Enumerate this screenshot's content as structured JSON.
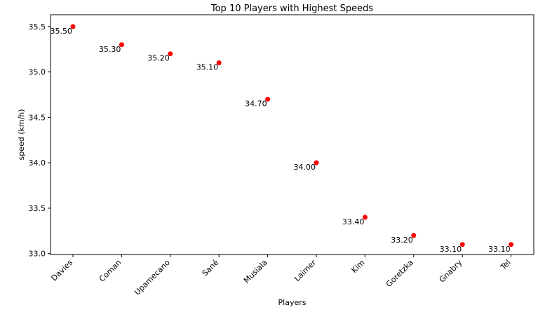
{
  "chart_data": {
    "type": "scatter",
    "title": "Top 10 Players with Highest Speeds",
    "xlabel": "Players",
    "ylabel": "speed (km/h)",
    "categories": [
      "Davies",
      "Coman",
      "Upamecano",
      "Sané",
      "Musiala",
      "Laimer",
      "Kim",
      "Goretzka",
      "Gnabry",
      "Tel"
    ],
    "values": [
      35.5,
      35.3,
      35.2,
      35.1,
      34.7,
      34.0,
      33.4,
      33.2,
      33.1,
      33.1
    ],
    "data_labels": [
      "35.50",
      "35.30",
      "35.20",
      "35.10",
      "34.70",
      "34.00",
      "33.40",
      "33.20",
      "33.10",
      "33.10"
    ],
    "yticks": [
      "33.0",
      "33.5",
      "34.0",
      "34.5",
      "35.0",
      "35.5"
    ],
    "ylim": [
      32.99,
      35.63
    ],
    "grid": false,
    "marker_color": "#ff0000"
  }
}
